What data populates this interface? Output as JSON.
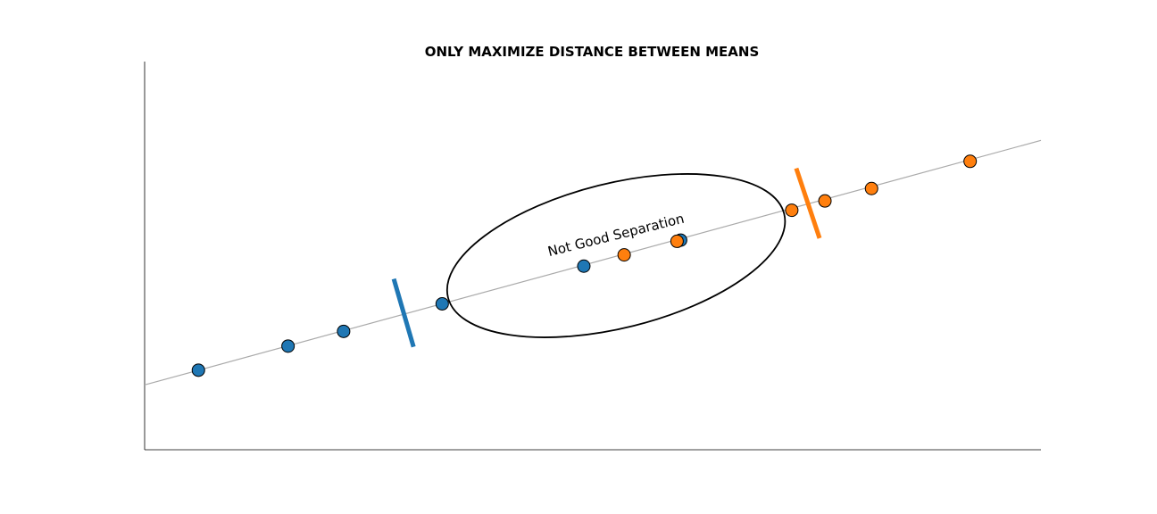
{
  "chart_data": {
    "type": "scatter",
    "title": "ONLY MAXIMIZE DISTANCE BETWEEN MEANS",
    "xlabel": "",
    "ylabel": "",
    "xlim": [
      0,
      10
    ],
    "ylim": [
      0,
      10
    ],
    "axes_visible": [
      "left",
      "bottom"
    ],
    "ticks_visible": false,
    "grid": false,
    "legend": "none",
    "projection_line": {
      "x": [
        0,
        10
      ],
      "y": [
        1.67,
        7.97
      ],
      "color": "#aaaaaa"
    },
    "series": [
      {
        "color": "#1f77b4",
        "x": [
          0.6,
          1.6,
          2.22,
          3.32,
          4.9,
          5.98
        ],
        "y": [
          2.05,
          2.67,
          3.05,
          3.76,
          4.73,
          5.4
        ]
      },
      {
        "color": "#ff7f0e",
        "x": [
          5.35,
          5.94,
          7.22,
          7.59,
          8.11,
          9.21
        ],
        "y": [
          5.02,
          5.37,
          6.17,
          6.41,
          6.73,
          7.43
        ]
      }
    ],
    "class_markers": [
      {
        "color": "#1f77b4",
        "x": [
          2.78,
          3.0
        ],
        "y": [
          4.4,
          2.65
        ]
      },
      {
        "color": "#ff7f0e",
        "x": [
          7.27,
          7.53
        ],
        "y": [
          7.25,
          5.45
        ]
      }
    ],
    "annotations": [
      {
        "text": "Not Good Separation",
        "x": 5.26,
        "y": 5.52,
        "rotation_deg": -14
      }
    ],
    "highlight_ellipse": {
      "center_x": 5.26,
      "center_y": 5.0,
      "color": "#000000"
    }
  }
}
